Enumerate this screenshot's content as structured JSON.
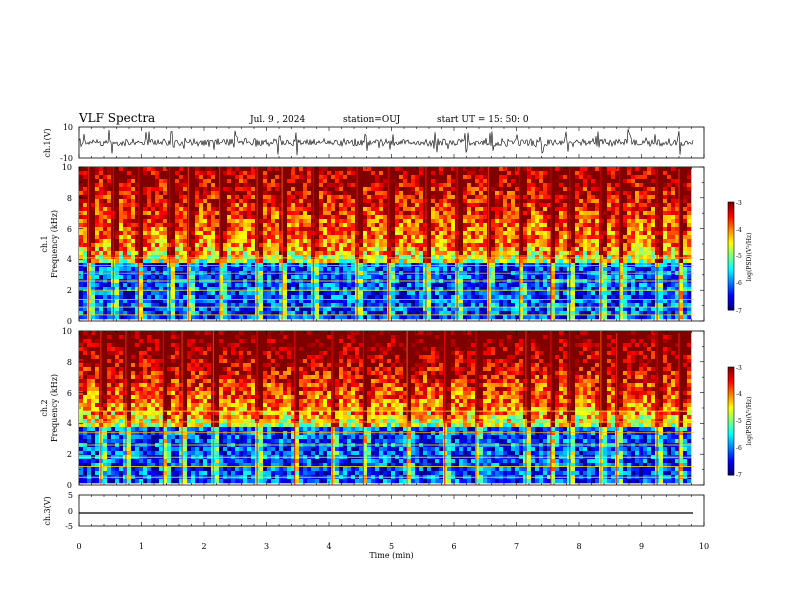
{
  "header": {
    "title": "VLF Spectra",
    "date": "Jul. 9 , 2024",
    "station": "station=OUJ",
    "start": "start UT = 15: 50: 0"
  },
  "chart_data": [
    {
      "type": "line",
      "name": "waveform-ch1",
      "ylabel": "ch.1(V)",
      "ylim": [
        -10,
        10
      ],
      "yticks": [
        "10",
        "-10"
      ],
      "xlim": [
        0,
        10
      ],
      "baseline": 0,
      "bursts_min": [
        0.5,
        1.1,
        1.5,
        1.7,
        2.5,
        3.2,
        3.5,
        4.6,
        5.7,
        6.2,
        6.6,
        7.4,
        7.8,
        8.3,
        8.8,
        9.6
      ]
    },
    {
      "type": "heatmap",
      "name": "spectrogram-ch1",
      "ylabel_top": "ch.1",
      "ylabel": "Frequency (kHz)",
      "xlim": [
        0,
        9.83
      ],
      "ylim": [
        0,
        10
      ],
      "yticks": [
        "0",
        "2",
        "4",
        "6",
        "8",
        "10"
      ],
      "colorbar": {
        "label": "log(PSD)(V²/Hz)",
        "range": [
          -7,
          -3
        ],
        "ticks": [
          "-3",
          "-4",
          "-5",
          "-6",
          "-7"
        ]
      },
      "bands_khz": [
        0.4,
        0.9,
        1.4,
        2.0,
        2.6,
        3.1,
        3.6,
        4.1
      ],
      "bursts_min": [
        0.15,
        0.55,
        0.95,
        1.45,
        1.75,
        2.25,
        2.85,
        3.25,
        3.75,
        4.45,
        4.95,
        5.55,
        6.05,
        6.55,
        7.05,
        7.55,
        7.85,
        8.35,
        8.65,
        9.25,
        9.6
      ]
    },
    {
      "type": "heatmap",
      "name": "spectrogram-ch2",
      "ylabel_top": "ch.2",
      "ylabel": "Frequency (kHz)",
      "xlim": [
        0,
        9.83
      ],
      "ylim": [
        0,
        10
      ],
      "yticks": [
        "0",
        "2",
        "4",
        "6",
        "8",
        "10"
      ],
      "colorbar": {
        "label": "log(PSD)(V²/Hz)",
        "range": [
          -7,
          -3
        ],
        "ticks": [
          "-3",
          "-4",
          "-5",
          "-6",
          "-7"
        ]
      },
      "bands_khz": [
        0.5,
        1.2,
        1.8,
        2.6,
        3.4,
        4.1,
        4.8
      ],
      "bursts_min": [
        0.35,
        0.75,
        1.35,
        1.65,
        2.15,
        2.85,
        3.45,
        4.05,
        4.55,
        5.25,
        5.85,
        6.35,
        7.15,
        7.55,
        7.85,
        8.35,
        8.6,
        9.25,
        9.6
      ]
    },
    {
      "type": "line",
      "name": "waveform-ch3",
      "ylabel": "ch.3(V)",
      "ylim": [
        -5,
        5
      ],
      "yticks": [
        "5",
        "0",
        "-5"
      ],
      "xlim": [
        0,
        9.83
      ],
      "values": [
        -1.6,
        -1.6
      ]
    }
  ],
  "xaxis": {
    "label": "Time (min)",
    "ticks": [
      "0",
      "1",
      "2",
      "3",
      "4",
      "5",
      "6",
      "7",
      "8",
      "9",
      "10"
    ]
  }
}
